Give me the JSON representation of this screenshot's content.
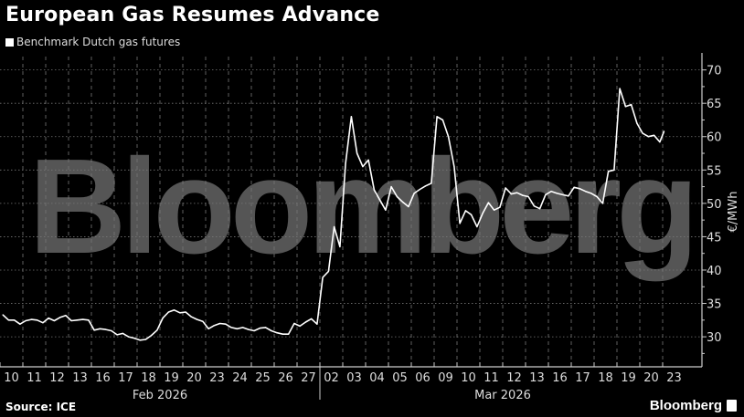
{
  "title": "European Gas Resumes Advance",
  "source": "Source: ICE",
  "brand": "Bloomberg",
  "watermark": "Bloomberg",
  "colors": {
    "background": "#000000",
    "line": "#ffffff",
    "watermark": "#555555",
    "grid": "#666666"
  },
  "chart_data": {
    "type": "line",
    "title": "European Gas Resumes Advance",
    "ylabel": "€/MWh",
    "ylim": [
      25.5,
      72
    ],
    "y_ticks": [
      30,
      35,
      40,
      45,
      50,
      55,
      60,
      65,
      70
    ],
    "y_axis_side": "right",
    "grid": true,
    "legend": "top-left",
    "months": [
      {
        "label": "Feb 2026",
        "days": [
          "10",
          "11",
          "12",
          "13",
          "16",
          "17",
          "18",
          "19",
          "20",
          "23",
          "24",
          "25",
          "26",
          "27"
        ]
      },
      {
        "label": "Mar 2026",
        "days": [
          "02",
          "03",
          "04",
          "05",
          "06",
          "09",
          "10",
          "11",
          "12",
          "13",
          "16",
          "17",
          "18",
          "19",
          "20",
          "23"
        ]
      }
    ],
    "series": [
      {
        "name": "Benchmark Dutch gas futures",
        "note_sampling": "intraday samples per trading day",
        "daily": [
          [
            33.3,
            32.5,
            32.5,
            31.9
          ],
          [
            32.4,
            32.6,
            32.5,
            32.1
          ],
          [
            32.8,
            32.4,
            32.9,
            33.2
          ],
          [
            32.4,
            32.5,
            32.6,
            32.5
          ],
          [
            31.0,
            31.2,
            31.1,
            30.9
          ],
          [
            30.3,
            30.5,
            30.0,
            29.8
          ],
          [
            29.5,
            29.6,
            30.2,
            31.0
          ],
          [
            32.8,
            33.7,
            34.0,
            33.6
          ],
          [
            33.7,
            33.0,
            32.6,
            32.3
          ],
          [
            31.2,
            31.7,
            32.0,
            31.9
          ],
          [
            31.4,
            31.2,
            31.4,
            31.1
          ],
          [
            30.9,
            31.3,
            31.4,
            30.9
          ],
          [
            30.6,
            30.4,
            30.4,
            32.0
          ],
          [
            31.6,
            32.2,
            32.7,
            31.9
          ],
          [
            38.9,
            39.8,
            46.5,
            43.5
          ],
          [
            56.0,
            63.0,
            57.5,
            55.5
          ],
          [
            56.5,
            52.0,
            50.5,
            49.0
          ],
          [
            52.5,
            51.0,
            50.2,
            49.5
          ],
          [
            51.5,
            52.1,
            52.6,
            53.0
          ],
          [
            63.0,
            62.5,
            60.0,
            55.5
          ],
          [
            47.0,
            48.9,
            48.3,
            46.5
          ],
          [
            48.5,
            50.1,
            49.0,
            49.4
          ],
          [
            52.3,
            51.4,
            51.6,
            51.2
          ],
          [
            51.0,
            49.6,
            49.2,
            51.3
          ],
          [
            51.8,
            51.5,
            51.3,
            51.1
          ],
          [
            52.4,
            52.2,
            51.8,
            51.5
          ],
          [
            51.0,
            50.0,
            54.8,
            55.0
          ],
          [
            67.2,
            64.5,
            64.8,
            62.0
          ],
          [
            60.5,
            60.0,
            60.2,
            59.2
          ],
          [
            60.8
          ]
        ]
      }
    ]
  }
}
